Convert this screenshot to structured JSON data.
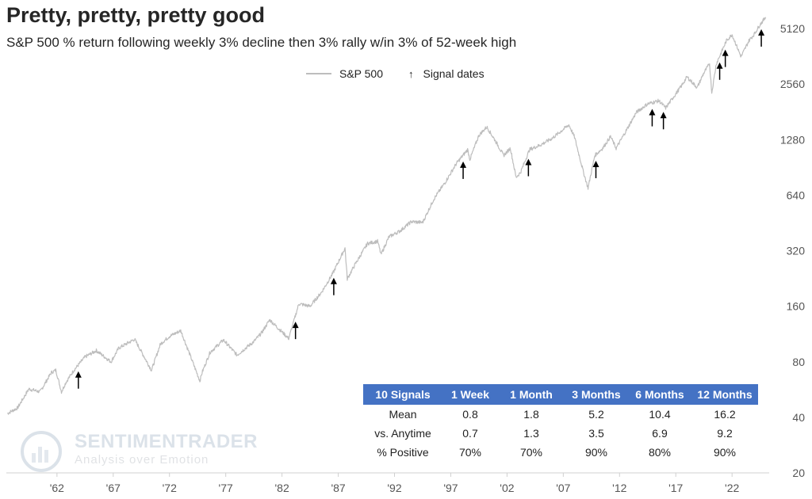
{
  "header": {
    "title": "Pretty, pretty, pretty good",
    "subtitle": "S&P 500 % return following weekly 3% decline then 3% rally w/in 3% of 52-week high"
  },
  "legend": {
    "series_label": "S&P 500",
    "arrow_label": "Signal dates",
    "arrow_glyph": "↑"
  },
  "watermark": {
    "name": "SENTIMENTRADER",
    "tagline": "Analysis over Emotion"
  },
  "colors": {
    "price_line": "#bdbdbd",
    "arrow": "#000000",
    "table_header": "#4472c4",
    "axis": "#d0d0d0"
  },
  "chart_data": {
    "type": "line",
    "title": "Pretty, pretty, pretty good",
    "subtitle": "S&P 500 % return following weekly 3% decline then 3% rally w/in 3% of 52-week high",
    "y_scale": "log2",
    "ylim": [
      20,
      6000
    ],
    "y_ticks": [
      20,
      40,
      80,
      160,
      320,
      640,
      1280,
      2560,
      5120
    ],
    "xlim": [
      1957.5,
      2025.3
    ],
    "x_ticks": [
      {
        "value": 1962,
        "label": "'62"
      },
      {
        "value": 1967,
        "label": "'67"
      },
      {
        "value": 1972,
        "label": "'72"
      },
      {
        "value": 1977,
        "label": "'77"
      },
      {
        "value": 1982,
        "label": "'82"
      },
      {
        "value": 1987,
        "label": "'87"
      },
      {
        "value": 1992,
        "label": "'92"
      },
      {
        "value": 1997,
        "label": "'97"
      },
      {
        "value": 2002,
        "label": "'02"
      },
      {
        "value": 2007,
        "label": "'07"
      },
      {
        "value": 2012,
        "label": "'12"
      },
      {
        "value": 2017,
        "label": "'17"
      },
      {
        "value": 2022,
        "label": "'22"
      }
    ],
    "series": [
      {
        "name": "S&P 500",
        "x": [
          1957.6,
          1958.5,
          1959.5,
          1960.5,
          1961.5,
          1961.9,
          1962.4,
          1962.8,
          1963.5,
          1964.5,
          1965.5,
          1966.8,
          1967.5,
          1968.9,
          1970.4,
          1971.2,
          1972.0,
          1973.0,
          1974.7,
          1974.9,
          1975.6,
          1976.8,
          1978.0,
          1979.5,
          1980.2,
          1980.9,
          1982.6,
          1983.5,
          1984.5,
          1985.5,
          1986.5,
          1987.6,
          1987.8,
          1988.5,
          1989.6,
          1990.5,
          1990.8,
          1991.5,
          1992.5,
          1993.5,
          1994.5,
          1995.5,
          1996.5,
          1997.5,
          1998.5,
          1998.7,
          1999.5,
          2000.2,
          2001.0,
          2001.7,
          2002.3,
          2002.8,
          2003.2,
          2004.0,
          2005.0,
          2006.0,
          2007.5,
          2008.0,
          2008.8,
          2009.2,
          2009.8,
          2010.5,
          2011.2,
          2011.7,
          2012.5,
          2013.5,
          2014.5,
          2015.5,
          2016.1,
          2016.8,
          2017.5,
          2018.0,
          2018.9,
          2019.5,
          2020.0,
          2020.2,
          2020.6,
          2021.5,
          2022.0,
          2022.8,
          2023.5,
          2024.0,
          2024.5,
          2025.0
        ],
        "y": [
          42,
          45,
          57,
          55,
          70,
          72,
          55,
          62,
          72,
          85,
          92,
          80,
          95,
          106,
          72,
          100,
          110,
          118,
          63,
          70,
          90,
          105,
          87,
          103,
          115,
          135,
          107,
          165,
          160,
          190,
          240,
          330,
          225,
          270,
          350,
          360,
          305,
          380,
          410,
          460,
          455,
          610,
          750,
          950,
          1130,
          1000,
          1350,
          1500,
          1250,
          1050,
          1150,
          800,
          850,
          1130,
          1200,
          1300,
          1540,
          1320,
          850,
          700,
          1050,
          1150,
          1330,
          1150,
          1400,
          1800,
          2000,
          2080,
          1900,
          2180,
          2500,
          2800,
          2450,
          2950,
          3300,
          2300,
          3300,
          4400,
          4750,
          3600,
          4400,
          4800,
          5400,
          5900
        ]
      }
    ],
    "signal_dates": [
      1963.9,
      1983.2,
      1986.6,
      1998.1,
      2003.9,
      2009.9,
      2014.9,
      2015.9,
      2020.9,
      2021.4,
      2024.6
    ],
    "table": {
      "headers": [
        "10 Signals",
        "1 Week",
        "1 Month",
        "3 Months",
        "6 Months",
        "12 Months"
      ],
      "rows": [
        [
          "Mean",
          "0.8",
          "1.8",
          "5.2",
          "10.4",
          "16.2"
        ],
        [
          "vs. Anytime",
          "0.7",
          "1.3",
          "3.5",
          "6.9",
          "9.2"
        ],
        [
          "% Positive",
          "70%",
          "70%",
          "90%",
          "80%",
          "90%"
        ]
      ]
    }
  }
}
